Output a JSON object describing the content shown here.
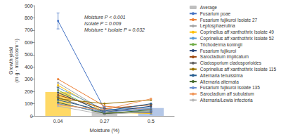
{
  "chart_data": {
    "type": "bar_line",
    "x_label": "Moisture (%)",
    "y_label": "Growth yield (m g · microcosm⁻¹)",
    "annotations": [
      "Moisture P < 0.001",
      "Isolate P = 0.009",
      "Moisture * Isolate P = 0.032"
    ],
    "categories": [
      "0.04",
      "0.27",
      "0.5"
    ],
    "ylim": [
      0,
      900
    ],
    "yticks": [
      0,
      100,
      200,
      300,
      400,
      500,
      600,
      700,
      800,
      900
    ],
    "grid": false,
    "legend": "right",
    "series": [
      {
        "name": "Average",
        "type": "bar",
        "color": "#bfbfbf",
        "colors": [
          "#ffd966",
          "#c9c9c9",
          "#b4c7e7"
        ],
        "values": [
          195,
          40,
          65
        ],
        "errors": [
          40,
          25,
          30
        ]
      },
      {
        "name": "Fusarium poae",
        "type": "line",
        "marker": "circle",
        "color": "#4472c4",
        "values": [
          775,
          55,
          30
        ],
        "errors": [
          65,
          20,
          15
        ]
      },
      {
        "name": "Fusarium fujikuroi Isolate 27",
        "type": "line",
        "marker": "circle",
        "color": "#ed7d31",
        "values": [
          300,
          80,
          50
        ]
      },
      {
        "name": "Leptosphaerulina",
        "type": "line",
        "marker": "circle",
        "color": "#a5a5a5",
        "values": [
          270,
          40,
          60
        ]
      },
      {
        "name": "Coprinellus aff xanthothrix Isolate 49",
        "type": "line",
        "marker": "circle",
        "color": "#ffc000",
        "values": [
          250,
          30,
          20
        ]
      },
      {
        "name": "Coprinellus aff xanthothrix Isolate 52",
        "type": "line",
        "marker": "circle",
        "color": "#5b9bd5",
        "values": [
          230,
          50,
          70
        ]
      },
      {
        "name": "Trichoderma koningii",
        "type": "line",
        "marker": "circle",
        "color": "#70ad47",
        "values": [
          210,
          20,
          40
        ]
      },
      {
        "name": "Fusarium fujikuroi",
        "type": "line",
        "marker": "circle",
        "color": "#264478",
        "values": [
          190,
          30,
          80
        ]
      },
      {
        "name": "Sarocladium implicatum",
        "type": "line",
        "marker": "circle",
        "color": "#9e480e",
        "values": [
          170,
          60,
          90
        ]
      },
      {
        "name": "Cladosporium cladosporioides",
        "type": "line",
        "marker": "circle",
        "color": "#636363",
        "values": [
          150,
          20,
          30
        ]
      },
      {
        "name": "Coprinellus aff xanthothrix Isolate 115",
        "type": "line",
        "marker": "circle",
        "color": "#997300",
        "values": [
          140,
          100,
          130
        ]
      },
      {
        "name": "Alternaria tenuissima",
        "type": "line",
        "marker": "circle",
        "color": "#255e91",
        "values": [
          130,
          40,
          100
        ]
      },
      {
        "name": "Alternaria alternata",
        "type": "line",
        "marker": "circle",
        "color": "#43682b",
        "values": [
          110,
          20,
          50
        ]
      },
      {
        "name": "Fusarium fujikuroi Isolate 135",
        "type": "line",
        "marker": "circle",
        "color": "#698ed0",
        "values": [
          100,
          30,
          60
        ]
      },
      {
        "name": "Sarocladium aff subulatum",
        "type": "line",
        "marker": "circle",
        "color": "#f1975a",
        "values": [
          90,
          50,
          140
        ]
      },
      {
        "name": "Alternaria/Lewia infectoria",
        "type": "line",
        "marker": "circle",
        "color": "#b7b7b7",
        "values": [
          80,
          10,
          40
        ]
      }
    ]
  }
}
